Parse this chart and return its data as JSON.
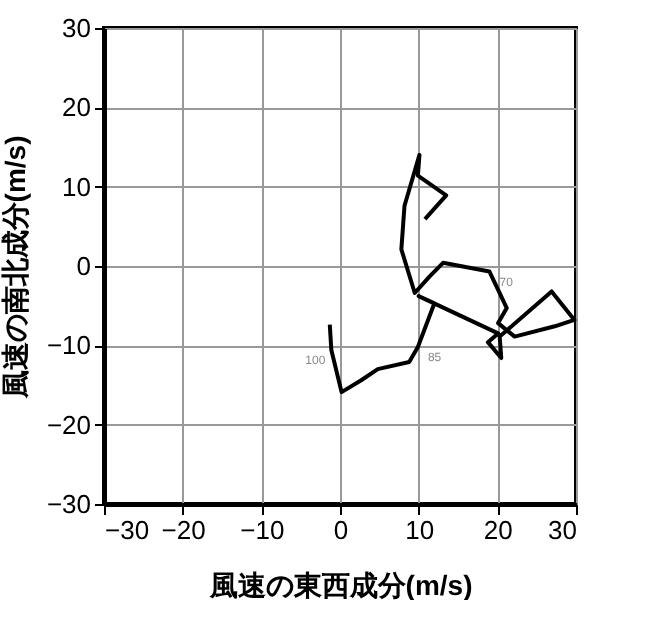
{
  "chart_data": {
    "type": "line",
    "xlabel": "風速の東西成分(m/s)",
    "ylabel": "風速の南北成分(m/s)",
    "series": [
      {
        "color": "#000000",
        "x": [
          -1.3,
          -1.1,
          0.2,
          2.7,
          4.8,
          8.8,
          9.9,
          12.0,
          10.0,
          20.1,
          18.8,
          20.5,
          20.3,
          26.9,
          29.8,
          27.3,
          22.2,
          20.1,
          21.2,
          20.1,
          19.0,
          13.1,
          11.4,
          9.5,
          7.8,
          8.2,
          10.1,
          9.9,
          13.5,
          10.8
        ],
        "values": [
          -7.4,
          -10.6,
          -15.9,
          -14.4,
          -13.0,
          -12.1,
          -10.2,
          -4.7,
          -3.8,
          -8.5,
          -9.6,
          -11.6,
          -8.9,
          -3.2,
          -6.8,
          -7.6,
          -8.9,
          -7.2,
          -5.3,
          -3.0,
          -0.7,
          0.4,
          -1.3,
          -3.4,
          2.1,
          7.6,
          14.0,
          11.4,
          8.9,
          5.9
        ]
      }
    ],
    "annotations": [
      {
        "text": "100",
        "x": -1.1,
        "y": -10.6
      },
      {
        "text": "85",
        "x": 9.9,
        "y": -10.2
      },
      {
        "text": "70",
        "x": 19.0,
        "y": -0.7
      }
    ],
    "xlim": [
      -30,
      30
    ],
    "ylim": [
      -30,
      30
    ],
    "xticks": [
      -30,
      -20,
      -10,
      0,
      10,
      20,
      30
    ],
    "yticks": [
      -30,
      -20,
      -10,
      0,
      10,
      20,
      30
    ],
    "grid": true,
    "marker": "none",
    "line_style": "solid"
  }
}
